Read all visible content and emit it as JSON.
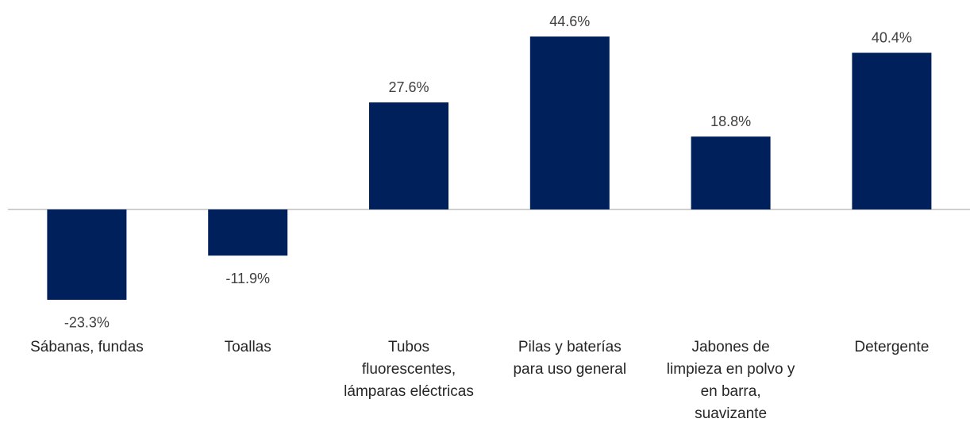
{
  "chart_data": {
    "type": "bar",
    "categories": [
      "Sábanas, fundas",
      "Toallas",
      "Tubos fluorescentes, lámparas eléctricas",
      "Pilas y baterías para uso general",
      "Jabones de limpieza en polvo y en barra, suavizante",
      "Detergente"
    ],
    "values": [
      -23.3,
      -11.9,
      27.6,
      44.6,
      18.8,
      40.4
    ],
    "value_labels": [
      "-23.3%",
      "-11.9%",
      "27.6%",
      "44.6%",
      "18.8%",
      "40.4%"
    ],
    "color": "#00205b"
  }
}
